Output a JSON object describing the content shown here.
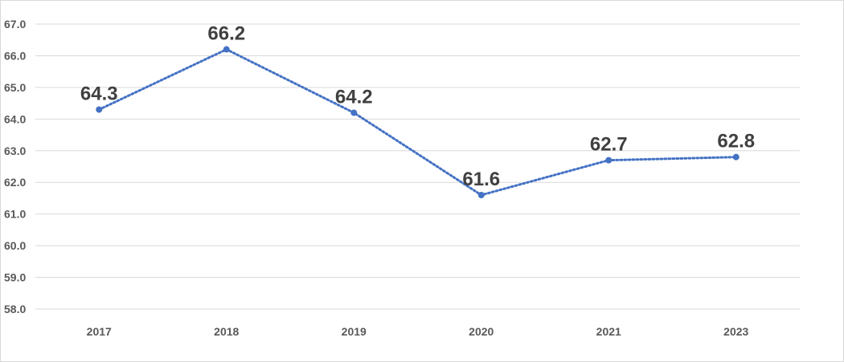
{
  "chart_data": {
    "type": "line",
    "title": "",
    "xlabel": "",
    "ylabel": "",
    "categories": [
      "2017",
      "2018",
      "2019",
      "2020",
      "2021",
      "2023"
    ],
    "series": [
      {
        "values": [
          64.3,
          66.2,
          64.2,
          61.6,
          62.7,
          62.8
        ],
        "color": "#4472c4",
        "line_style": "dotted",
        "markers": true
      }
    ],
    "data_labels": [
      "64.3",
      "66.2",
      "64.2",
      "61.6",
      "62.7",
      "62.8"
    ],
    "ylim": [
      58.0,
      67.0
    ],
    "y_ticks": [
      "58.0",
      "59.0",
      "60.0",
      "61.0",
      "62.0",
      "63.0",
      "64.0",
      "65.0",
      "66.0",
      "67.0"
    ],
    "grid": true,
    "legend": "none"
  }
}
